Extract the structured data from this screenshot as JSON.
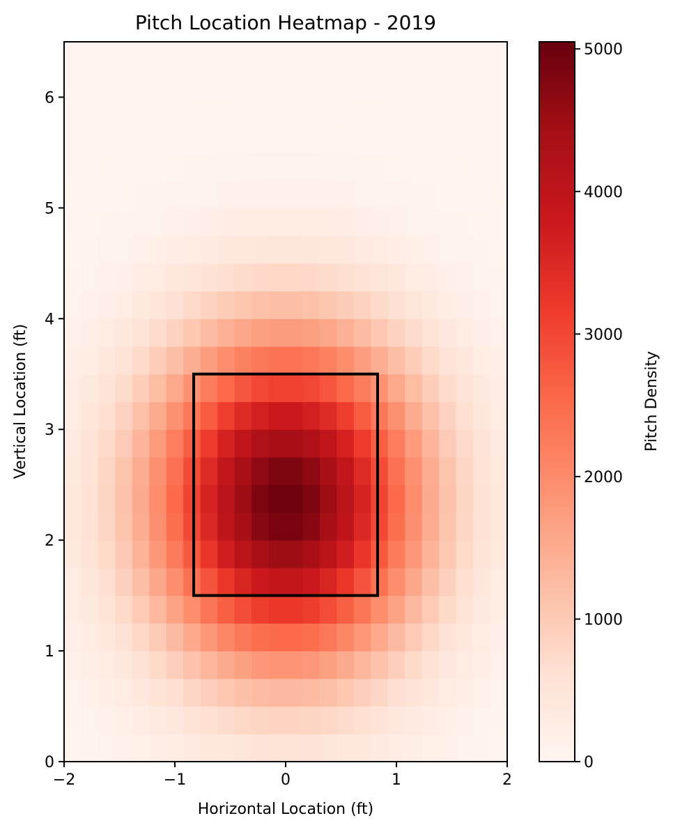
{
  "chart_data": {
    "type": "heatmap",
    "title": "Pitch Location Heatmap - 2019",
    "xlabel": "Horizontal Location (ft)",
    "ylabel": "Vertical Location (ft)",
    "xlim": [
      -2,
      2
    ],
    "ylim": [
      0,
      6.5
    ],
    "xticks": [
      -2,
      -1,
      0,
      1,
      2
    ],
    "xtick_labels": [
      "−2",
      "−1",
      "0",
      "1",
      "2"
    ],
    "yticks": [
      0,
      1,
      2,
      3,
      4,
      5,
      6
    ],
    "ytick_labels": [
      "0",
      "1",
      "2",
      "3",
      "4",
      "5",
      "6"
    ],
    "colormap": "Reds",
    "colorbar": {
      "label": "Pitch Density",
      "min": 0,
      "max": 5050,
      "ticks": [
        0,
        1000,
        2000,
        3000,
        4000,
        5000
      ],
      "tick_labels": [
        "0",
        "1000",
        "2000",
        "3000",
        "4000",
        "5000"
      ]
    },
    "grid": false,
    "bins": {
      "nx": 26,
      "ny": 26
    },
    "density_model": {
      "peak": 5000,
      "center_x": 0.0,
      "center_y": 2.35,
      "sigma_x": 0.85,
      "sigma_y": 1.05
    },
    "strike_zone": {
      "x": [
        -0.83,
        0.83
      ],
      "y": [
        1.5,
        3.5
      ],
      "color": "#000000"
    }
  }
}
